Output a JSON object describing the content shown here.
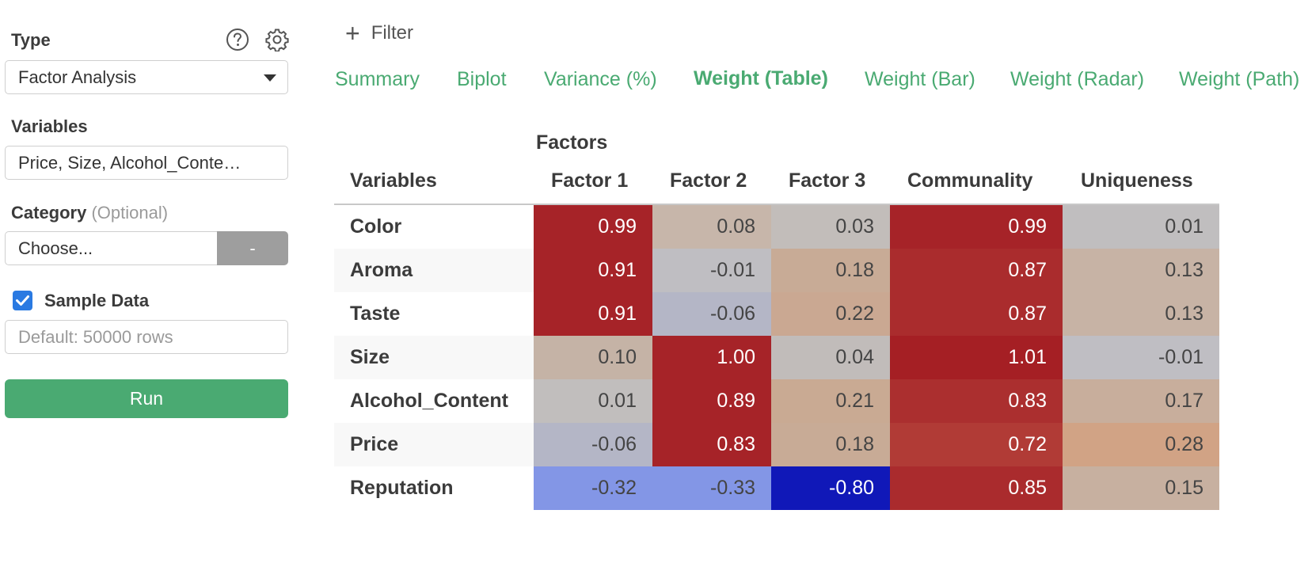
{
  "sidebar": {
    "type_label": "Type",
    "type_value": "Factor Analysis",
    "variables_label": "Variables",
    "variables_value": "Price, Size, Alcohol_Conte…",
    "category_label": "Category",
    "category_optional": "(Optional)",
    "category_placeholder": "Choose...",
    "category_button": "-",
    "sample_label": "Sample Data",
    "sample_checked": true,
    "sample_placeholder": "Default: 50000 rows",
    "run_label": "Run"
  },
  "filter_label": "Filter",
  "tabs": [
    {
      "label": "Summary",
      "active": false
    },
    {
      "label": "Biplot",
      "active": false
    },
    {
      "label": "Variance (%)",
      "active": false
    },
    {
      "label": "Weight (Table)",
      "active": true
    },
    {
      "label": "Weight (Bar)",
      "active": false
    },
    {
      "label": "Weight (Radar)",
      "active": false
    },
    {
      "label": "Weight (Path)",
      "active": false
    }
  ],
  "table": {
    "group_header": "Factors",
    "columns": [
      "Variables",
      "Factor 1",
      "Factor 2",
      "Factor 3",
      "Communality",
      "Uniqueness"
    ],
    "rows": [
      {
        "variable": "Color",
        "values": [
          "0.99",
          "0.08",
          "0.03",
          "0.99",
          "0.01"
        ]
      },
      {
        "variable": "Aroma",
        "values": [
          "0.91",
          "-0.01",
          "0.18",
          "0.87",
          "0.13"
        ]
      },
      {
        "variable": "Taste",
        "values": [
          "0.91",
          "-0.06",
          "0.22",
          "0.87",
          "0.13"
        ]
      },
      {
        "variable": "Size",
        "values": [
          "0.10",
          "1.00",
          "0.04",
          "1.01",
          "-0.01"
        ]
      },
      {
        "variable": "Alcohol_Content",
        "values": [
          "0.01",
          "0.89",
          "0.21",
          "0.83",
          "0.17"
        ]
      },
      {
        "variable": "Price",
        "values": [
          "-0.06",
          "0.83",
          "0.18",
          "0.72",
          "0.28"
        ]
      },
      {
        "variable": "Reputation",
        "values": [
          "-0.32",
          "-0.33",
          "-0.80",
          "0.85",
          "0.15"
        ]
      }
    ],
    "cell_colors": [
      [
        "#a62328",
        "#c7b6aa",
        "#c2bdba",
        "#a62328",
        "#c0bebf"
      ],
      [
        "#a62328",
        "#bfbec2",
        "#c8ab96",
        "#aa2c2d",
        "#c7b3a5"
      ],
      [
        "#a62328",
        "#b4b6c6",
        "#caa892",
        "#aa2c2d",
        "#c7b3a5"
      ],
      [
        "#c5b3a6",
        "#a62328",
        "#c1bcba",
        "#a51f24",
        "#bfbec3"
      ],
      [
        "#c1bebd",
        "#a62328",
        "#c9aa93",
        "#ab2f2f",
        "#c8ae9c"
      ],
      [
        "#b4b6c6",
        "#a62328",
        "#c8ab96",
        "#b13b36",
        "#d1a385"
      ],
      [
        "#8396e6",
        "#8396e6",
        "#1018b8",
        "#aa2b2d",
        "#c7b0a0"
      ]
    ],
    "cell_text_colors": [
      [
        "#ffffff",
        "#444444",
        "#444444",
        "#ffffff",
        "#444444"
      ],
      [
        "#ffffff",
        "#444444",
        "#444444",
        "#ffffff",
        "#444444"
      ],
      [
        "#ffffff",
        "#444444",
        "#444444",
        "#ffffff",
        "#444444"
      ],
      [
        "#444444",
        "#ffffff",
        "#444444",
        "#ffffff",
        "#444444"
      ],
      [
        "#444444",
        "#ffffff",
        "#444444",
        "#ffffff",
        "#444444"
      ],
      [
        "#444444",
        "#ffffff",
        "#444444",
        "#ffffff",
        "#444444"
      ],
      [
        "#444444",
        "#444444",
        "#ffffff",
        "#ffffff",
        "#444444"
      ]
    ]
  },
  "colors": {
    "accent": "#4aaa72",
    "checkbox": "#2a7ae2",
    "button_gray": "#9e9e9e"
  },
  "icons": [
    "help-circle-icon",
    "gear-icon",
    "chevron-down-icon",
    "check-icon",
    "plus-icon"
  ]
}
